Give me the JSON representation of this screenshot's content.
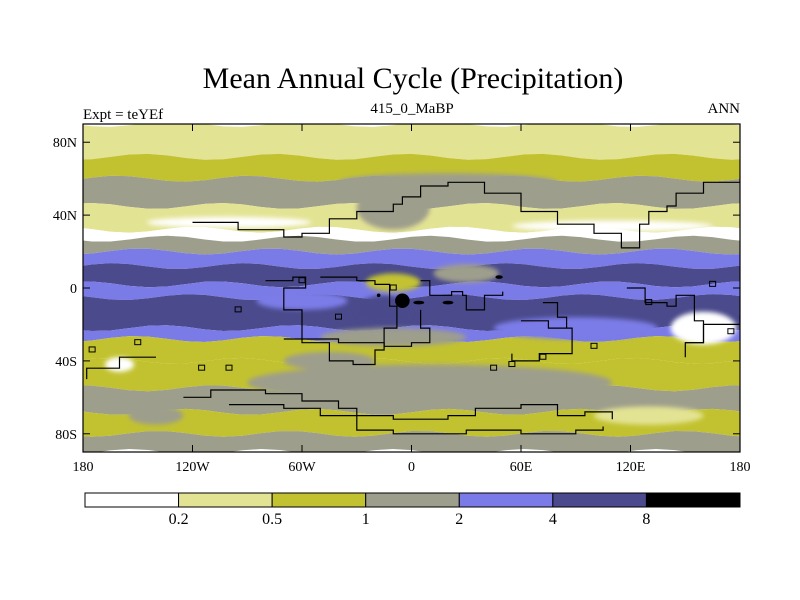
{
  "title": "Mean Annual Cycle (Precipitation)",
  "left_label": "Expt = teYEf",
  "center_label": "415_0_MaBP",
  "right_label": "ANN",
  "y_ticks": [
    {
      "lat": 80,
      "label": "80N"
    },
    {
      "lat": 40,
      "label": "40N"
    },
    {
      "lat": 0,
      "label": "0"
    },
    {
      "lat": -40,
      "label": "40S"
    },
    {
      "lat": -80,
      "label": "80S"
    }
  ],
  "x_ticks": [
    {
      "lon": -180,
      "label": "180"
    },
    {
      "lon": -120,
      "label": "120W"
    },
    {
      "lon": -60,
      "label": "60W"
    },
    {
      "lon": 0,
      "label": "0"
    },
    {
      "lon": 60,
      "label": "60E"
    },
    {
      "lon": 120,
      "label": "120E"
    },
    {
      "lon": 180,
      "label": "180"
    }
  ],
  "colorbar": {
    "colors": [
      "#ffffff",
      "#e3e394",
      "#c2c230",
      "#9e9e8c",
      "#7b7be8",
      "#4a4a8c",
      "#000000"
    ],
    "levels": [
      "0.2",
      "0.5",
      "1",
      "2",
      "4",
      "8"
    ]
  },
  "map_data": {
    "lat_range": [
      -90,
      90
    ],
    "lon_range": [
      -180,
      180
    ],
    "bands": [
      {
        "lat": [
          72,
          90
        ],
        "class": 1
      },
      {
        "lat": [
          60,
          72
        ],
        "class": 2
      },
      {
        "lat": [
          45,
          60
        ],
        "class": 3
      },
      {
        "lat": [
          32,
          45
        ],
        "class": 1
      },
      {
        "lat": [
          27,
          32
        ],
        "class": 0
      },
      {
        "lat": [
          20,
          27
        ],
        "class": 3
      },
      {
        "lat": [
          12,
          20
        ],
        "class": 4
      },
      {
        "lat": [
          2,
          12
        ],
        "class": 5
      },
      {
        "lat": [
          -5,
          2
        ],
        "class": 4
      },
      {
        "lat": [
          -22,
          -5
        ],
        "class": 5
      },
      {
        "lat": [
          -28,
          -22
        ],
        "class": 4
      },
      {
        "lat": [
          -40,
          -28
        ],
        "class": 2
      },
      {
        "lat": [
          -55,
          -40
        ],
        "class": 2
      },
      {
        "lat": [
          -68,
          -55
        ],
        "class": 3
      },
      {
        "lat": [
          -80,
          -68
        ],
        "class": 2
      },
      {
        "lat": [
          -90,
          -80
        ],
        "class": 3
      }
    ],
    "patches": [
      {
        "lon": -100,
        "lat": 36,
        "rlon": 45,
        "rlat": 3,
        "class": 0
      },
      {
        "lon": 110,
        "lat": 34,
        "rlon": 55,
        "rlat": 3,
        "class": 0
      },
      {
        "lon": 20,
        "lat": 58,
        "rlon": 60,
        "rlat": 5,
        "class": 3
      },
      {
        "lon": -10,
        "lat": 44,
        "rlon": 20,
        "rlat": 12,
        "class": 3
      },
      {
        "lon": -60,
        "lat": -7,
        "rlon": 25,
        "rlat": 5,
        "class": 4
      },
      {
        "lon": -10,
        "lat": 3,
        "rlon": 15,
        "rlat": 5,
        "class": 2
      },
      {
        "lon": 30,
        "lat": 8,
        "rlon": 18,
        "rlat": 5,
        "class": 3
      },
      {
        "lon": -15,
        "lat": -12,
        "rlon": 15,
        "rlat": 8,
        "class": 5
      },
      {
        "lon": -10,
        "lat": -27,
        "rlon": 40,
        "rlat": 5,
        "class": 3
      },
      {
        "lon": 90,
        "lat": -22,
        "rlon": 45,
        "rlat": 6,
        "class": 4
      },
      {
        "lon": 160,
        "lat": -22,
        "rlon": 18,
        "rlat": 9,
        "class": 0
      },
      {
        "lon": 10,
        "lat": -52,
        "rlon": 100,
        "rlat": 10,
        "class": 3
      },
      {
        "lon": -45,
        "lat": -40,
        "rlon": 25,
        "rlat": 5,
        "class": 3
      },
      {
        "lon": -140,
        "lat": -70,
        "rlon": 15,
        "rlat": 5,
        "class": 3
      },
      {
        "lon": 130,
        "lat": -70,
        "rlon": 30,
        "rlat": 5,
        "class": 1
      },
      {
        "lon": -160,
        "lat": -42,
        "rlon": 8,
        "rlat": 4,
        "class": 0
      }
    ],
    "maxima": [
      {
        "lon": -5,
        "lat": -7,
        "rlon": 4,
        "rlat": 4,
        "class": 6
      },
      {
        "lon": 4,
        "lat": -8,
        "rlon": 3,
        "rlat": 1,
        "class": 6
      },
      {
        "lon": 20,
        "lat": -8,
        "rlon": 3,
        "rlat": 1,
        "class": 6
      },
      {
        "lon": -18,
        "lat": -4,
        "rlon": 1,
        "rlat": 1,
        "class": 6
      },
      {
        "lon": 48,
        "lat": 6,
        "rlon": 2,
        "rlat": 1,
        "class": 6
      }
    ],
    "coastlines": [
      [
        [
          -120,
          36
        ],
        [
          -95,
          32
        ],
        [
          -70,
          28
        ],
        [
          -60,
          30
        ],
        [
          -45,
          38
        ],
        [
          -30,
          42
        ],
        [
          -10,
          46
        ],
        [
          -5,
          50
        ],
        [
          5,
          56
        ],
        [
          20,
          58
        ],
        [
          40,
          52
        ],
        [
          60,
          42
        ],
        [
          80,
          35
        ],
        [
          100,
          30
        ],
        [
          115,
          22
        ],
        [
          125,
          22
        ],
        [
          125,
          35
        ],
        [
          130,
          42
        ],
        [
          140,
          45
        ],
        [
          145,
          52
        ],
        [
          160,
          58
        ],
        [
          180,
          60
        ]
      ],
      [
        [
          -80,
          4
        ],
        [
          -65,
          6
        ],
        [
          -58,
          0
        ],
        [
          -70,
          -12
        ],
        [
          -60,
          -30
        ],
        [
          -45,
          -40
        ],
        [
          -32,
          -42
        ],
        [
          -20,
          -34
        ],
        [
          -15,
          -22
        ],
        [
          -8,
          -10
        ],
        [
          -12,
          2
        ],
        [
          -20,
          4
        ],
        [
          -30,
          6
        ],
        [
          -50,
          6
        ]
      ],
      [
        [
          -70,
          -28
        ],
        [
          -40,
          -30
        ],
        [
          -15,
          -32
        ],
        [
          0,
          -30
        ],
        [
          10,
          -22
        ],
        [
          5,
          -12
        ]
      ],
      [
        [
          5,
          4
        ],
        [
          10,
          -4
        ],
        [
          22,
          -2
        ],
        [
          28,
          -4
        ],
        [
          30,
          -12
        ],
        [
          40,
          -8
        ],
        [
          40,
          -4
        ],
        [
          50,
          -2
        ]
      ],
      [
        [
          60,
          -18
        ],
        [
          75,
          -22
        ],
        [
          88,
          -30
        ],
        [
          88,
          -36
        ],
        [
          70,
          -40
        ],
        [
          55,
          -36
        ]
      ],
      [
        [
          72,
          -8
        ],
        [
          80,
          -16
        ],
        [
          85,
          -22
        ]
      ],
      [
        [
          118,
          0
        ],
        [
          128,
          -8
        ],
        [
          140,
          -10
        ],
        [
          145,
          -4
        ],
        [
          155,
          -18
        ],
        [
          160,
          -30
        ],
        [
          150,
          -38
        ]
      ],
      [
        [
          150,
          -30
        ],
        [
          160,
          -20
        ],
        [
          180,
          -15
        ]
      ],
      [
        [
          -140,
          -38
        ],
        [
          -160,
          -44
        ],
        [
          -178,
          -50
        ]
      ],
      [
        [
          -125,
          -60
        ],
        [
          -110,
          -56
        ],
        [
          -80,
          -58
        ],
        [
          -60,
          -62
        ],
        [
          -40,
          -66
        ],
        [
          -30,
          -70
        ],
        [
          -10,
          -72
        ],
        [
          20,
          -70
        ],
        [
          35,
          -66
        ],
        [
          60,
          -64
        ],
        [
          80,
          -70
        ],
        [
          95,
          -68
        ],
        [
          110,
          -72
        ]
      ],
      [
        [
          -100,
          -64
        ],
        [
          -70,
          -66
        ],
        [
          -50,
          -70
        ],
        [
          -30,
          -78
        ],
        [
          -10,
          -80
        ],
        [
          30,
          -78
        ],
        [
          60,
          -80
        ],
        [
          90,
          -78
        ],
        [
          105,
          -76
        ]
      ]
    ],
    "islands": [
      {
        "lon": -150,
        "lat": -30
      },
      {
        "lon": -115,
        "lat": -44
      },
      {
        "lon": -100,
        "lat": -44
      },
      {
        "lon": -95,
        "lat": -12
      },
      {
        "lon": -60,
        "lat": 4
      },
      {
        "lon": -40,
        "lat": -16
      },
      {
        "lon": -10,
        "lat": 0
      },
      {
        "lon": 45,
        "lat": -44
      },
      {
        "lon": 55,
        "lat": -42
      },
      {
        "lon": 72,
        "lat": -38
      },
      {
        "lon": 100,
        "lat": -32
      },
      {
        "lon": 130,
        "lat": -8
      },
      {
        "lon": 165,
        "lat": 2
      },
      {
        "lon": 175,
        "lat": -24
      },
      {
        "lon": -175,
        "lat": -34
      }
    ]
  }
}
